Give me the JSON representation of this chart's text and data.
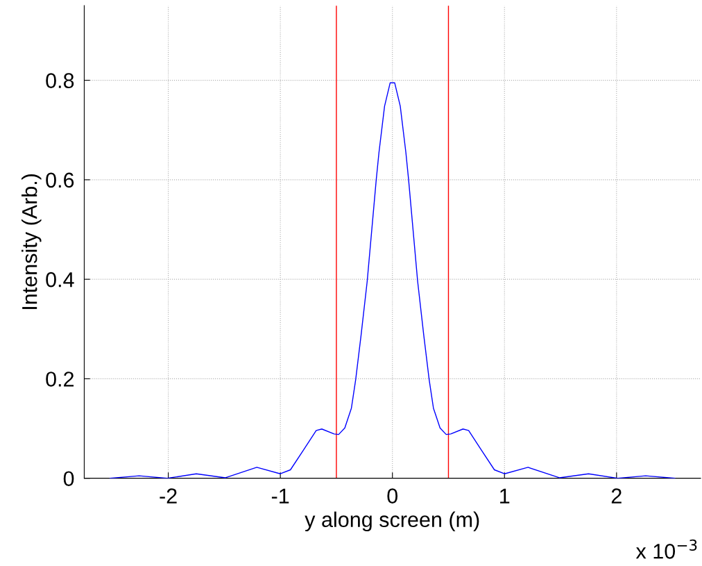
{
  "chart_data": {
    "type": "line",
    "xlabel": "y along screen (m)",
    "ylabel": "Intensity (Arb.)",
    "x": [
      -2.52,
      -2.26,
      -2.01,
      -1.75,
      -1.49,
      -1.21,
      -1.0,
      -0.91,
      -0.79,
      -0.68,
      -0.63,
      -0.52,
      -0.48,
      -0.425,
      -0.366,
      -0.328,
      -0.28,
      -0.225,
      -0.144,
      -0.12,
      -0.07,
      -0.02,
      0.02,
      0.07,
      0.12,
      0.144,
      0.225,
      0.28,
      0.328,
      0.366,
      0.425,
      0.48,
      0.52,
      0.63,
      0.68,
      0.79,
      0.91,
      1.0,
      1.21,
      1.49,
      1.75,
      2.01,
      2.26,
      2.52
    ],
    "series": [
      {
        "color": "#0000ff",
        "values": [
          0,
          0.005,
          0,
          0.009,
          0.001,
          0.022,
          0.009,
          0.017,
          0.058,
          0.096,
          0.099,
          0.089,
          0.088,
          0.101,
          0.141,
          0.198,
          0.287,
          0.396,
          0.601,
          0.655,
          0.748,
          0.795,
          0.795,
          0.748,
          0.655,
          0.601,
          0.396,
          0.287,
          0.198,
          0.141,
          0.101,
          0.088,
          0.089,
          0.099,
          0.096,
          0.058,
          0.017,
          0.009,
          0.022,
          0.001,
          0.009,
          0,
          0.005,
          0
        ]
      }
    ],
    "xlim": [
      -2.75,
      2.75
    ],
    "ylim": [
      0,
      0.95
    ],
    "xticks": [
      -2,
      -1,
      0,
      1,
      2
    ],
    "yticks": [
      0,
      0.2,
      0.4,
      0.6,
      0.8
    ],
    "ref_lines": [
      {
        "axis": "x",
        "value": -0.5,
        "color": "#ff0000"
      },
      {
        "axis": "x",
        "value": 0.5,
        "color": "#ff0000"
      }
    ],
    "annotations": [
      "x 10$^{−3}$"
    ],
    "grid": true,
    "line_style": "solid"
  }
}
